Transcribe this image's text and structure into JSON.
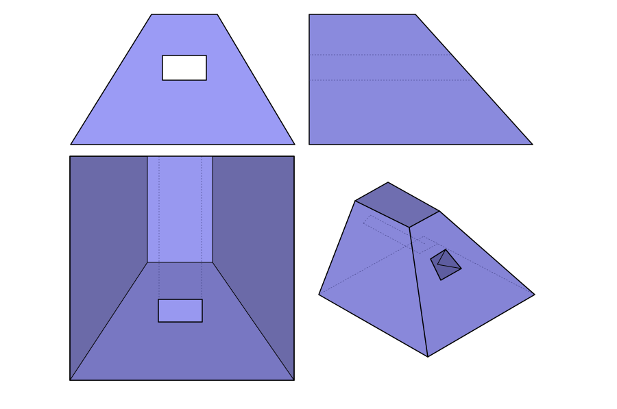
{
  "figure": {
    "description_visible_text": "",
    "views": [
      {
        "id": "front",
        "kind": "front-view"
      },
      {
        "id": "side",
        "kind": "side-view"
      },
      {
        "id": "top",
        "kind": "top-view"
      },
      {
        "id": "iso",
        "kind": "isometric-view"
      }
    ]
  },
  "colors": {
    "background": "#ffffff",
    "front_face": "#9b9bf5",
    "side_face": "#8a8add",
    "top_outer": "#6b6aa8",
    "top_strip": "#9898f0",
    "top_slope": "#7877c2",
    "iso_top": "#6f6eb0",
    "iso_left": "#8988da",
    "iso_right": "#8584d6",
    "window_white": "#ffffff",
    "window_dark": "#5e5da0",
    "outline": "#000000"
  }
}
